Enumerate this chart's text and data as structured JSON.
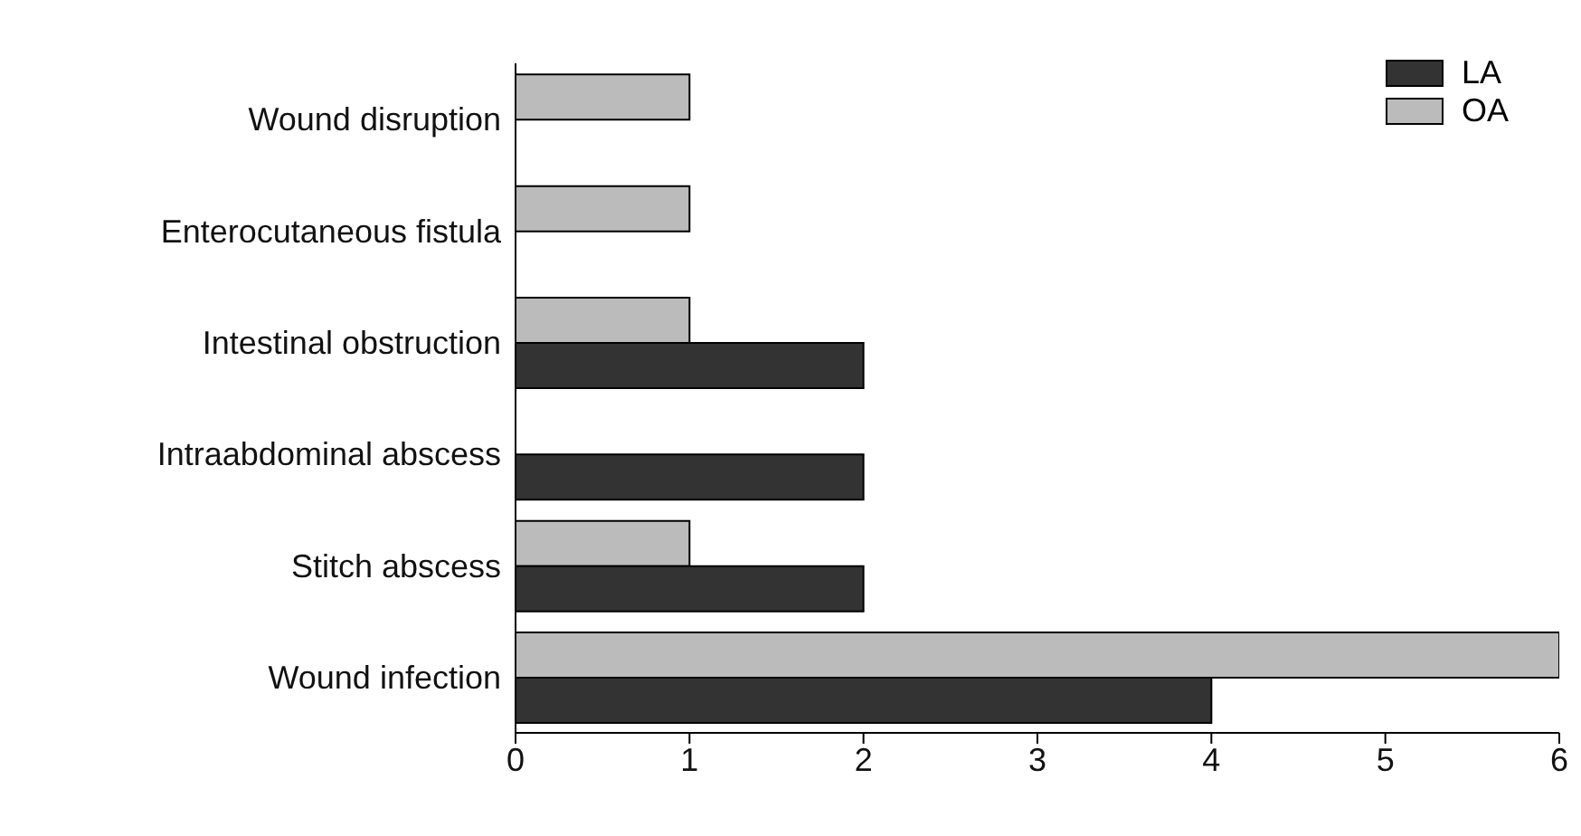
{
  "chart_data": {
    "type": "bar",
    "orientation": "horizontal",
    "categories": [
      "Wound disruption",
      "Enterocutaneous fistula",
      "Intestinal obstruction",
      "Intraabdominal abscess",
      "Stitch abscess",
      "Wound infection"
    ],
    "series": [
      {
        "name": "LA",
        "color": "#333333",
        "values": [
          null,
          null,
          2,
          2,
          2,
          4
        ]
      },
      {
        "name": "OA",
        "color": "#bbbbbb",
        "values": [
          1,
          1,
          1,
          null,
          1,
          6
        ]
      }
    ],
    "xlim": [
      0,
      6
    ],
    "xticks": [
      0,
      1,
      2,
      3,
      4,
      5,
      6
    ],
    "legend": "top right"
  }
}
